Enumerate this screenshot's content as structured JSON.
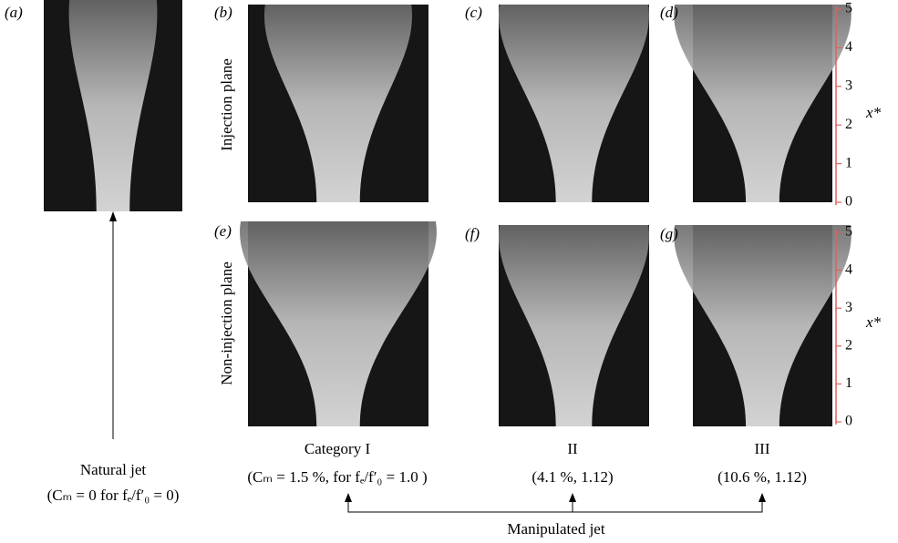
{
  "panels": [
    {
      "label": "(a)"
    },
    {
      "label": "(b)"
    },
    {
      "label": "(c)"
    },
    {
      "label": "(d)"
    },
    {
      "label": "(e)"
    },
    {
      "label": "(f)"
    },
    {
      "label": "(g)"
    }
  ],
  "rows": {
    "top": "Injection plane",
    "bottom": "Non-injection plane"
  },
  "axis": {
    "label": "x*",
    "ticks": [
      0,
      1,
      2,
      3,
      4,
      5
    ]
  },
  "captions": {
    "natural": {
      "title": "Natural jet",
      "params": "(Cₘ = 0 for fₑ/f′₀ = 0)"
    },
    "categories": [
      {
        "title": "Category I",
        "params": "(Cₘ = 1.5 %, for fₑ/f′₀ = 1.0 )"
      },
      {
        "title": "II",
        "params": "(4.1 %, 1.12)"
      },
      {
        "title": "III",
        "params": "(10.6 %, 1.12)"
      }
    ],
    "manipulated": "Manipulated jet"
  }
}
